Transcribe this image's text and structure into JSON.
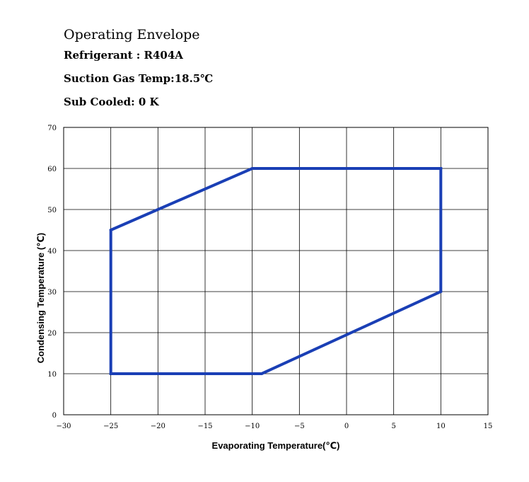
{
  "header": {
    "title": "Operating Envelope",
    "refrigerant": "Refrigerant : R404A",
    "suction": "Suction Gas Temp:18.5℃",
    "subcooled": "Sub Cooled: 0 K"
  },
  "chart_data": {
    "type": "line",
    "xlabel": "Evaporating Temperature(℃)",
    "ylabel": "Condensing Temperature (℃)",
    "xlim": [
      -30,
      15
    ],
    "ylim": [
      0,
      70
    ],
    "xticks": [
      -30,
      -25,
      -20,
      -15,
      -10,
      -5,
      0,
      5,
      10,
      15
    ],
    "yticks": [
      0,
      10,
      20,
      30,
      40,
      50,
      60,
      70
    ],
    "grid": true,
    "series": [
      {
        "closed": true,
        "color": "#1a3fb5",
        "points": [
          {
            "x": -25,
            "y": 45
          },
          {
            "x": -10,
            "y": 60
          },
          {
            "x": 10,
            "y": 60
          },
          {
            "x": 10,
            "y": 30
          },
          {
            "x": -9,
            "y": 10
          },
          {
            "x": -25,
            "y": 10
          }
        ]
      }
    ]
  }
}
